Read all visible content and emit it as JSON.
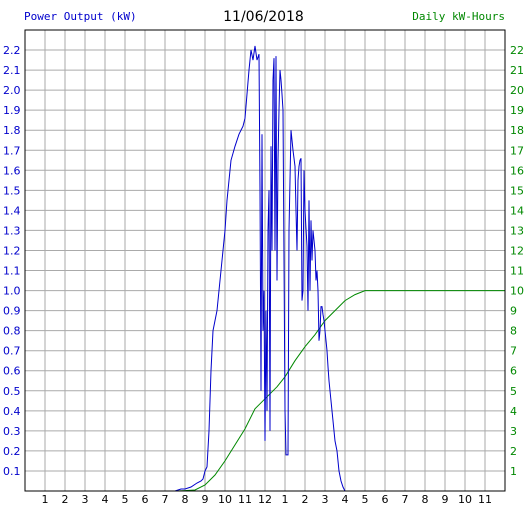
{
  "chart_data": {
    "type": "line",
    "title": "11/06/2018",
    "ylabel": "Power Output (kW)",
    "y2label": "Daily kW-Hours",
    "colors": {
      "power": "#0000cc",
      "energy": "#008800",
      "ylabel": "#0000cc",
      "y2label": "#008800",
      "grid": "#aaaaaa"
    },
    "xlim": [
      0,
      24
    ],
    "ylim": [
      0,
      2.3
    ],
    "y2lim": [
      0,
      23
    ],
    "x_tick_labels": [
      "1",
      "2",
      "3",
      "4",
      "5",
      "6",
      "7",
      "8",
      "9",
      "10",
      "11",
      "12",
      "1",
      "2",
      "3",
      "4",
      "5",
      "6",
      "7",
      "8",
      "9",
      "10",
      "11"
    ],
    "y_ticks": [
      "0.1",
      "0.2",
      "0.3",
      "0.4",
      "0.5",
      "0.6",
      "0.7",
      "0.8",
      "0.9",
      "1.0",
      "1.1",
      "1.2",
      "1.3",
      "1.4",
      "1.5",
      "1.6",
      "1.7",
      "1.8",
      "1.9",
      "2.0",
      "2.1",
      "2.2"
    ],
    "y2_ticks": [
      "1",
      "2",
      "3",
      "4",
      "5",
      "6",
      "7",
      "8",
      "9",
      "10",
      "11",
      "12",
      "13",
      "14",
      "15",
      "16",
      "17",
      "18",
      "19",
      "20",
      "21",
      "22"
    ],
    "grid": true,
    "series": [
      {
        "name": "Power Output (kW)",
        "axis": "left",
        "x": [
          7.0,
          7.5,
          7.8,
          8.0,
          8.3,
          8.6,
          8.8,
          8.9,
          9.0,
          9.1,
          9.2,
          9.3,
          9.4,
          9.5,
          9.6,
          9.8,
          10.0,
          10.1,
          10.2,
          10.3,
          10.5,
          10.7,
          10.9,
          11.0,
          11.2,
          11.3,
          11.4,
          11.5,
          11.6,
          11.7,
          11.75,
          11.8,
          11.85,
          11.9,
          11.95,
          12.0,
          12.05,
          12.1,
          12.15,
          12.2,
          12.25,
          12.3,
          12.35,
          12.4,
          12.45,
          12.5,
          12.55,
          12.6,
          12.65,
          12.7,
          12.75,
          12.8,
          12.85,
          12.9,
          12.95,
          13.0,
          13.05,
          13.1,
          13.15,
          13.2,
          13.3,
          13.4,
          13.5,
          13.55,
          13.6,
          13.65,
          13.7,
          13.75,
          13.8,
          13.85,
          13.9,
          13.95,
          14.0,
          14.1,
          14.15,
          14.2,
          14.25,
          14.3,
          14.35,
          14.4,
          14.5,
          14.55,
          14.6,
          14.65,
          14.7,
          14.75,
          14.8,
          14.85,
          14.9,
          14.95,
          15.0,
          15.05,
          15.1,
          15.15,
          15.2,
          15.25,
          15.3,
          15.35,
          15.4,
          15.45,
          15.5,
          15.6,
          15.7,
          15.8,
          15.9,
          16.0,
          16.2,
          16.4,
          16.6,
          16.8,
          16.9,
          17.0,
          17.1,
          17.2,
          24.0
        ],
        "y": [
          0.0,
          0.0,
          0.01,
          0.01,
          0.02,
          0.04,
          0.05,
          0.06,
          0.1,
          0.12,
          0.3,
          0.6,
          0.8,
          0.85,
          0.9,
          1.1,
          1.3,
          1.45,
          1.55,
          1.65,
          1.72,
          1.78,
          1.82,
          1.86,
          2.1,
          2.2,
          2.15,
          2.22,
          2.15,
          2.18,
          1.5,
          0.5,
          1.78,
          0.8,
          1.0,
          0.25,
          0.9,
          0.4,
          1.3,
          1.5,
          0.3,
          1.72,
          1.2,
          2.05,
          2.16,
          1.2,
          2.17,
          1.05,
          1.65,
          1.9,
          2.1,
          2.05,
          1.98,
          1.9,
          1.15,
          0.4,
          0.18,
          0.18,
          0.18,
          1.3,
          1.8,
          1.7,
          1.62,
          1.4,
          1.2,
          1.55,
          1.62,
          1.65,
          1.66,
          0.95,
          1.0,
          1.6,
          1.4,
          1.22,
          0.9,
          1.45,
          1.0,
          1.35,
          1.15,
          1.3,
          1.2,
          1.05,
          1.1,
          1.0,
          0.75,
          0.8,
          0.92,
          0.92,
          0.88,
          0.85,
          0.8,
          0.75,
          0.7,
          0.62,
          0.55,
          0.5,
          0.45,
          0.4,
          0.35,
          0.3,
          0.25,
          0.2,
          0.1,
          0.05,
          0.02,
          0.0,
          0.0,
          0.0,
          0.0,
          0.0,
          0.0,
          0.0,
          0.0,
          0.0,
          0.0
        ]
      },
      {
        "name": "Daily kW-Hours",
        "axis": "right",
        "x": [
          7.0,
          7.5,
          8.0,
          8.5,
          9.0,
          9.5,
          10.0,
          10.5,
          11.0,
          11.5,
          11.8,
          12.0,
          12.3,
          12.6,
          13.0,
          13.5,
          14.0,
          14.5,
          15.0,
          15.5,
          16.0,
          16.5,
          17.0,
          17.5,
          18.0,
          19.0,
          20.0,
          21.0,
          22.0,
          23.0,
          24.0
        ],
        "y": [
          0.0,
          0.0,
          0.02,
          0.05,
          0.3,
          0.8,
          1.5,
          2.3,
          3.1,
          4.1,
          4.4,
          4.6,
          4.9,
          5.2,
          5.7,
          6.5,
          7.2,
          7.8,
          8.5,
          9.0,
          9.5,
          9.8,
          10.0,
          10.0,
          10.0,
          10.0,
          10.0,
          10.0,
          10.0,
          10.0,
          10.0
        ]
      }
    ]
  }
}
